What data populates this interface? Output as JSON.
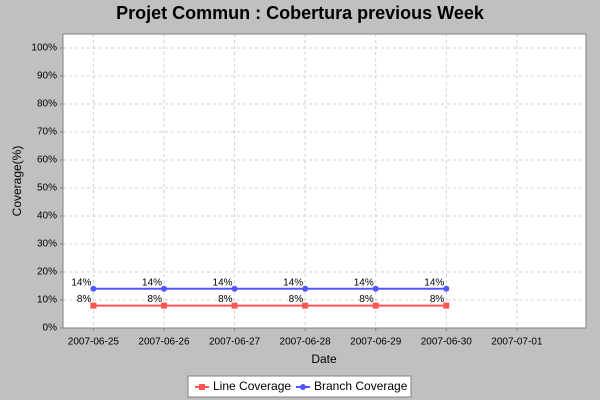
{
  "chart_data": {
    "type": "line",
    "title": "Projet Commun : Cobertura previous Week",
    "x_label": "Date",
    "y_label": "Coverage(%)",
    "x": [
      "2007-06-25",
      "2007-06-26",
      "2007-06-27",
      "2007-06-28",
      "2007-06-29",
      "2007-06-30"
    ],
    "xlim": [
      "2007-06-24T13:40",
      "2007-07-01T23:30"
    ],
    "xticks": [
      "2007-06-25",
      "2007-06-26",
      "2007-06-27",
      "2007-06-28",
      "2007-06-29",
      "2007-06-30",
      "2007-07-01"
    ],
    "ylim": [
      0,
      105
    ],
    "yticks": [
      {
        "value": 0,
        "label": "0%"
      },
      {
        "value": 10,
        "label": "10%"
      },
      {
        "value": 20,
        "label": "20%"
      },
      {
        "value": 30,
        "label": "30%"
      },
      {
        "value": 40,
        "label": "40%"
      },
      {
        "value": 50,
        "label": "50%"
      },
      {
        "value": 60,
        "label": "60%"
      },
      {
        "value": 70,
        "label": "70%"
      },
      {
        "value": 80,
        "label": "80%"
      },
      {
        "value": 90,
        "label": "90%"
      },
      {
        "value": 100,
        "label": "100%"
      }
    ],
    "grid": true,
    "legend": "bottom",
    "series": [
      {
        "name": "Line Coverage",
        "color": "#ff5555",
        "marker": "square",
        "values": [
          8,
          8,
          8,
          8,
          8,
          8
        ],
        "value_labels": [
          "8%",
          "8%",
          "8%",
          "8%",
          "8%",
          "8%"
        ]
      },
      {
        "name": "Branch Coverage",
        "color": "#5555ff",
        "marker": "circle",
        "values": [
          14,
          14,
          14,
          14,
          14,
          14
        ],
        "value_labels": [
          "14%",
          "14%",
          "14%",
          "14%",
          "14%",
          "14%"
        ]
      }
    ]
  }
}
